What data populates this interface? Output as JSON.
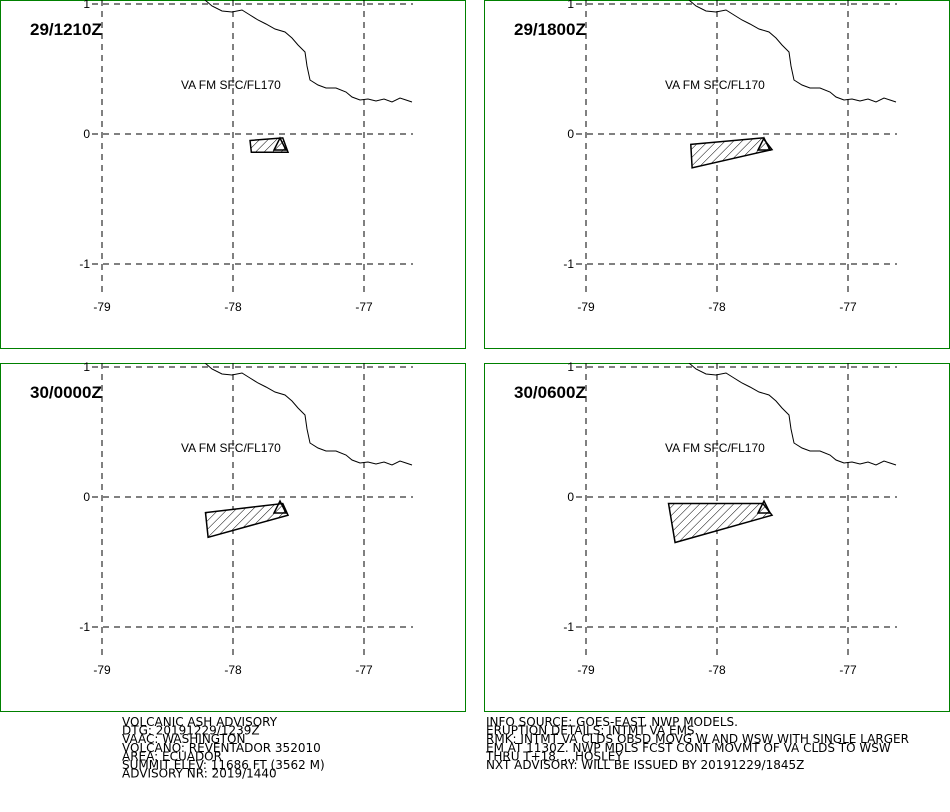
{
  "grid": {
    "lon_ticks": [
      -79,
      -78,
      -77
    ],
    "lat_ticks": [
      1,
      0,
      -1
    ]
  },
  "panels": [
    {
      "time": "29/1210Z",
      "annotation": "VA FM SFC/FL170",
      "ash_area": [
        [
          -77.87,
          -0.05
        ],
        [
          -77.62,
          -0.03
        ],
        [
          -77.58,
          -0.14
        ],
        [
          -77.86,
          -0.14
        ]
      ]
    },
    {
      "time": "29/1800Z",
      "annotation": "VA FM SFC/FL170",
      "ash_area": [
        [
          -78.2,
          -0.08
        ],
        [
          -77.65,
          -0.03
        ],
        [
          -77.58,
          -0.12
        ],
        [
          -78.19,
          -0.26
        ]
      ]
    },
    {
      "time": "30/0000Z",
      "annotation": "VA FM SFC/FL170",
      "ash_area": [
        [
          -78.21,
          -0.12
        ],
        [
          -77.62,
          -0.05
        ],
        [
          -77.58,
          -0.14
        ],
        [
          -78.19,
          -0.31
        ]
      ]
    },
    {
      "time": "30/0600Z",
      "annotation": "VA FM SFC/FL170",
      "ash_area": [
        [
          -78.37,
          -0.05
        ],
        [
          -77.65,
          -0.05
        ],
        [
          -77.58,
          -0.14
        ],
        [
          -78.32,
          -0.35
        ]
      ]
    }
  ],
  "advisory_left": [
    "VOLCANIC ASH ADVISORY",
    "DTG: 20191229/1239Z",
    "VAAC: WASHINGTON",
    "VOLCANO: REVENTADOR 352010",
    "AREA: ECUADOR",
    "SUMMIT ELEV: 11686 FT (3562 M)",
    "ADVISORY NR: 2019/1440"
  ],
  "advisory_right": [
    "INFO SOURCE: GOES-EAST. NWP MODELS.",
    "ERUPTION DETAILS: INTMT VA EMS.",
    "RMK: INTMT VA CLDS OBSD MOVG W AND WSW WITH SINGLE LARGER",
    "EM AT 1130Z. NWP MDLS FCST CONT MOVMT OF VA CLDS TO WSW",
    "THRU T+18. ...HOSLEY",
    "NXT ADVISORY: WILL BE ISSUED BY 20191229/1845Z"
  ]
}
